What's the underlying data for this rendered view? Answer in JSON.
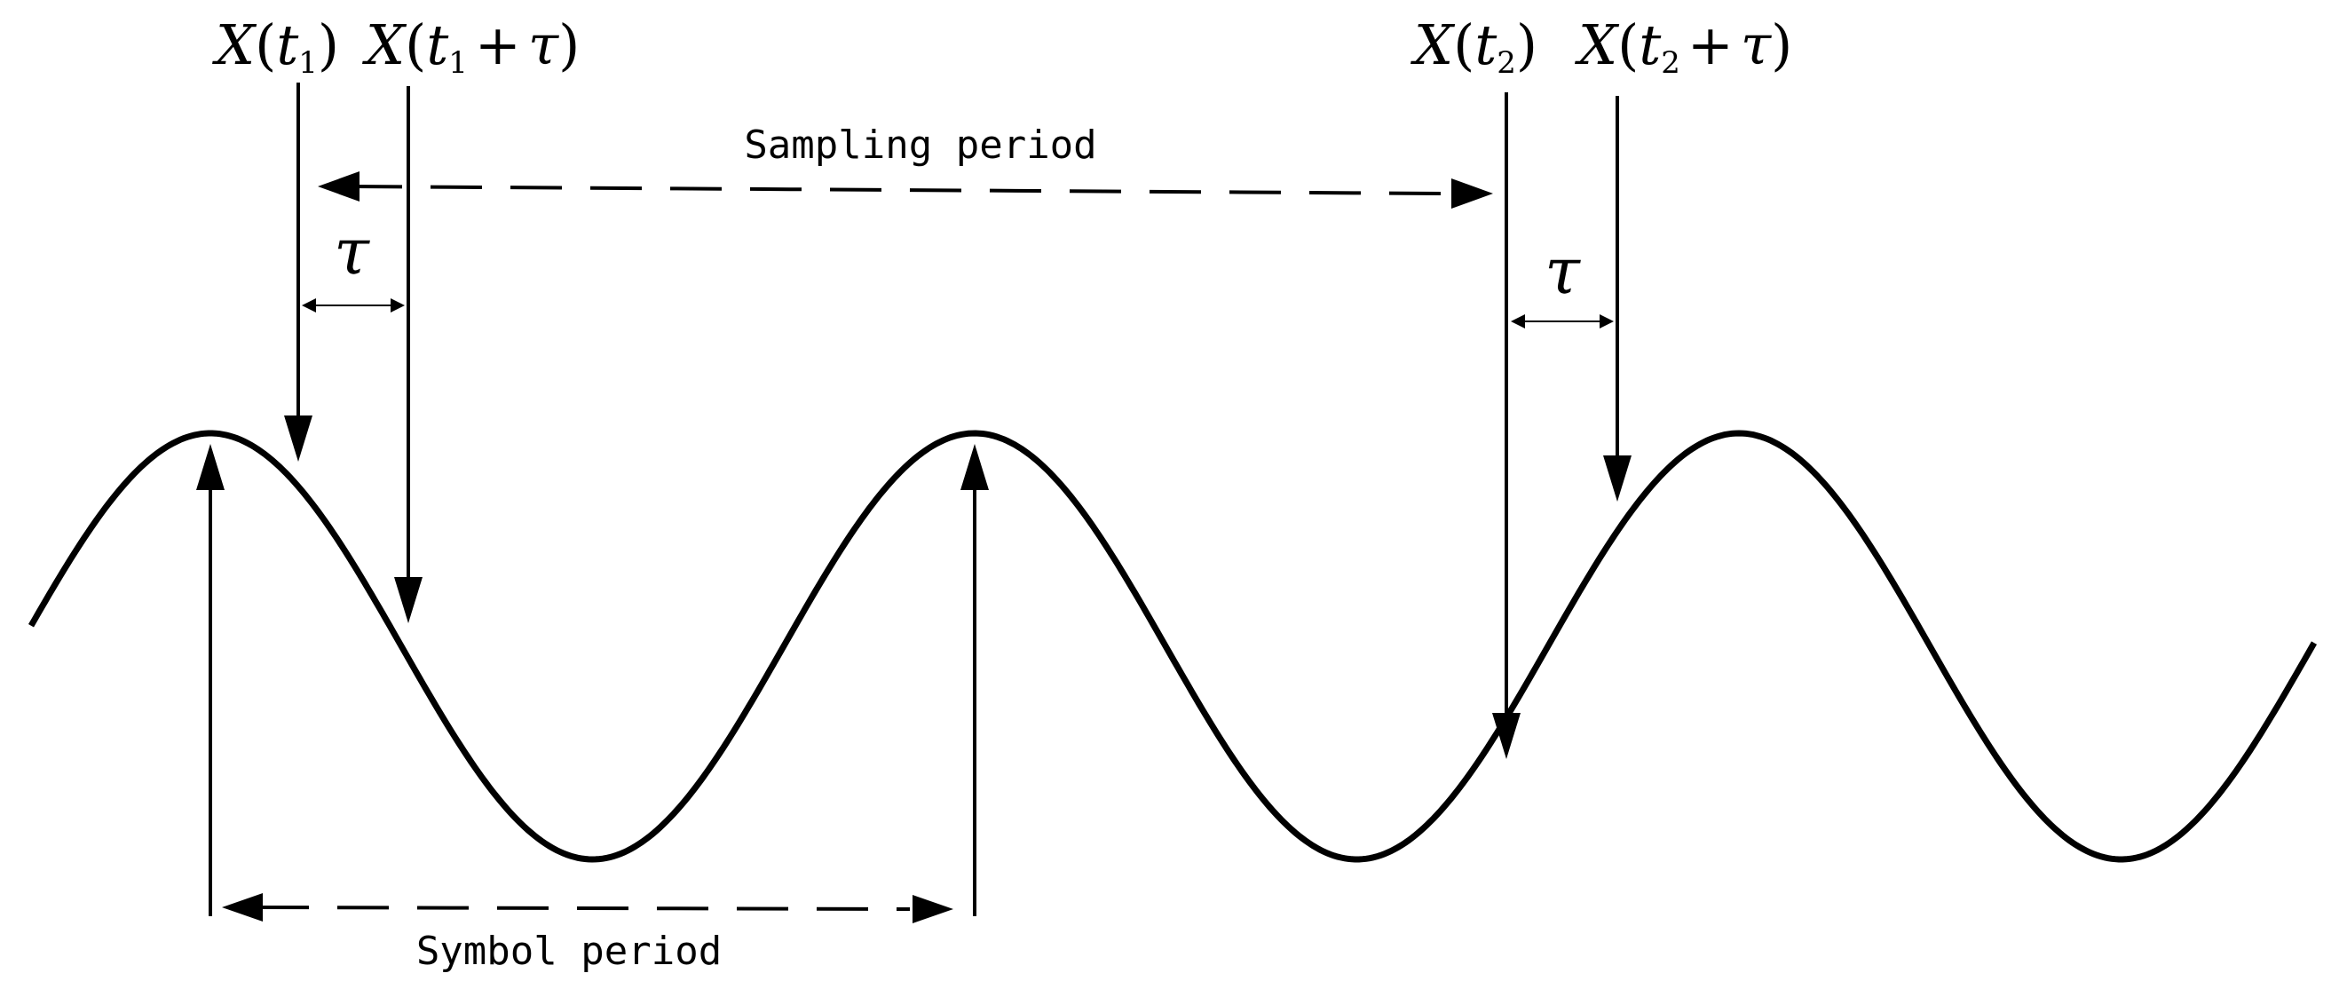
{
  "labels": {
    "sampling_period": "Sampling period",
    "symbol_period": "Symbol period",
    "tau_1": "τ",
    "tau_2": "τ"
  },
  "samples": [
    {
      "var": "X",
      "open": "(",
      "t": "t",
      "sub": "1",
      "plus": "",
      "tau": "",
      "close": ")"
    },
    {
      "var": "X",
      "open": "(",
      "t": "t",
      "sub": "1",
      "plus": "+",
      "tau": "τ",
      "close": ")"
    },
    {
      "var": "X",
      "open": "(",
      "t": "t",
      "sub": "2",
      "plus": "",
      "tau": "",
      "close": ")"
    },
    {
      "var": "X",
      "open": "(",
      "t": "t",
      "sub": "2",
      "plus": "+",
      "tau": "τ",
      "close": ")"
    }
  ]
}
